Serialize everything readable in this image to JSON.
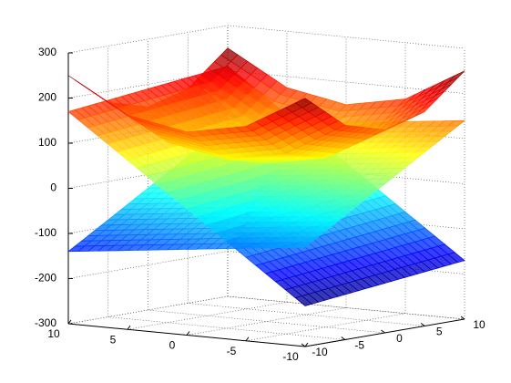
{
  "chart_data": {
    "type": "surface",
    "x": [
      -10,
      -5,
      0,
      5,
      10
    ],
    "y": [
      -10,
      -5,
      0,
      5,
      10
    ],
    "series": [
      {
        "values": [
          [
            -210,
            -200,
            -190,
            -180,
            -170
          ],
          [
            -115,
            -105,
            -95,
            -85,
            -75
          ],
          [
            -20,
            -10,
            0,
            10,
            20
          ],
          [
            75,
            85,
            95,
            105,
            115
          ],
          [
            170,
            180,
            190,
            200,
            210
          ]
        ]
      },
      {
        "values": [
          [
            -80,
            -25,
            30,
            85,
            140
          ],
          [
            -95,
            -40,
            15,
            70,
            125
          ],
          [
            -110,
            -55,
            0,
            55,
            110
          ],
          [
            -125,
            -70,
            -15,
            40,
            95
          ],
          [
            -140,
            -85,
            -30,
            25,
            80
          ]
        ]
      },
      {
        "values": [
          [
            250,
            175,
            150,
            175,
            250
          ],
          [
            175,
            100,
            75,
            100,
            175
          ],
          [
            150,
            75,
            50,
            75,
            150
          ],
          [
            175,
            100,
            75,
            100,
            175
          ],
          [
            250,
            175,
            150,
            175,
            250
          ]
        ]
      }
    ],
    "xlim": [
      -10,
      10
    ],
    "ylim": [
      -10,
      10
    ],
    "zlim": [
      -300,
      300
    ],
    "xticks": [
      -10,
      -5,
      0,
      5,
      10
    ],
    "yticks": [
      -10,
      -5,
      0,
      5,
      10
    ],
    "zticks": [
      -300,
      -200,
      -100,
      0,
      100,
      200,
      300
    ],
    "grid": true
  }
}
